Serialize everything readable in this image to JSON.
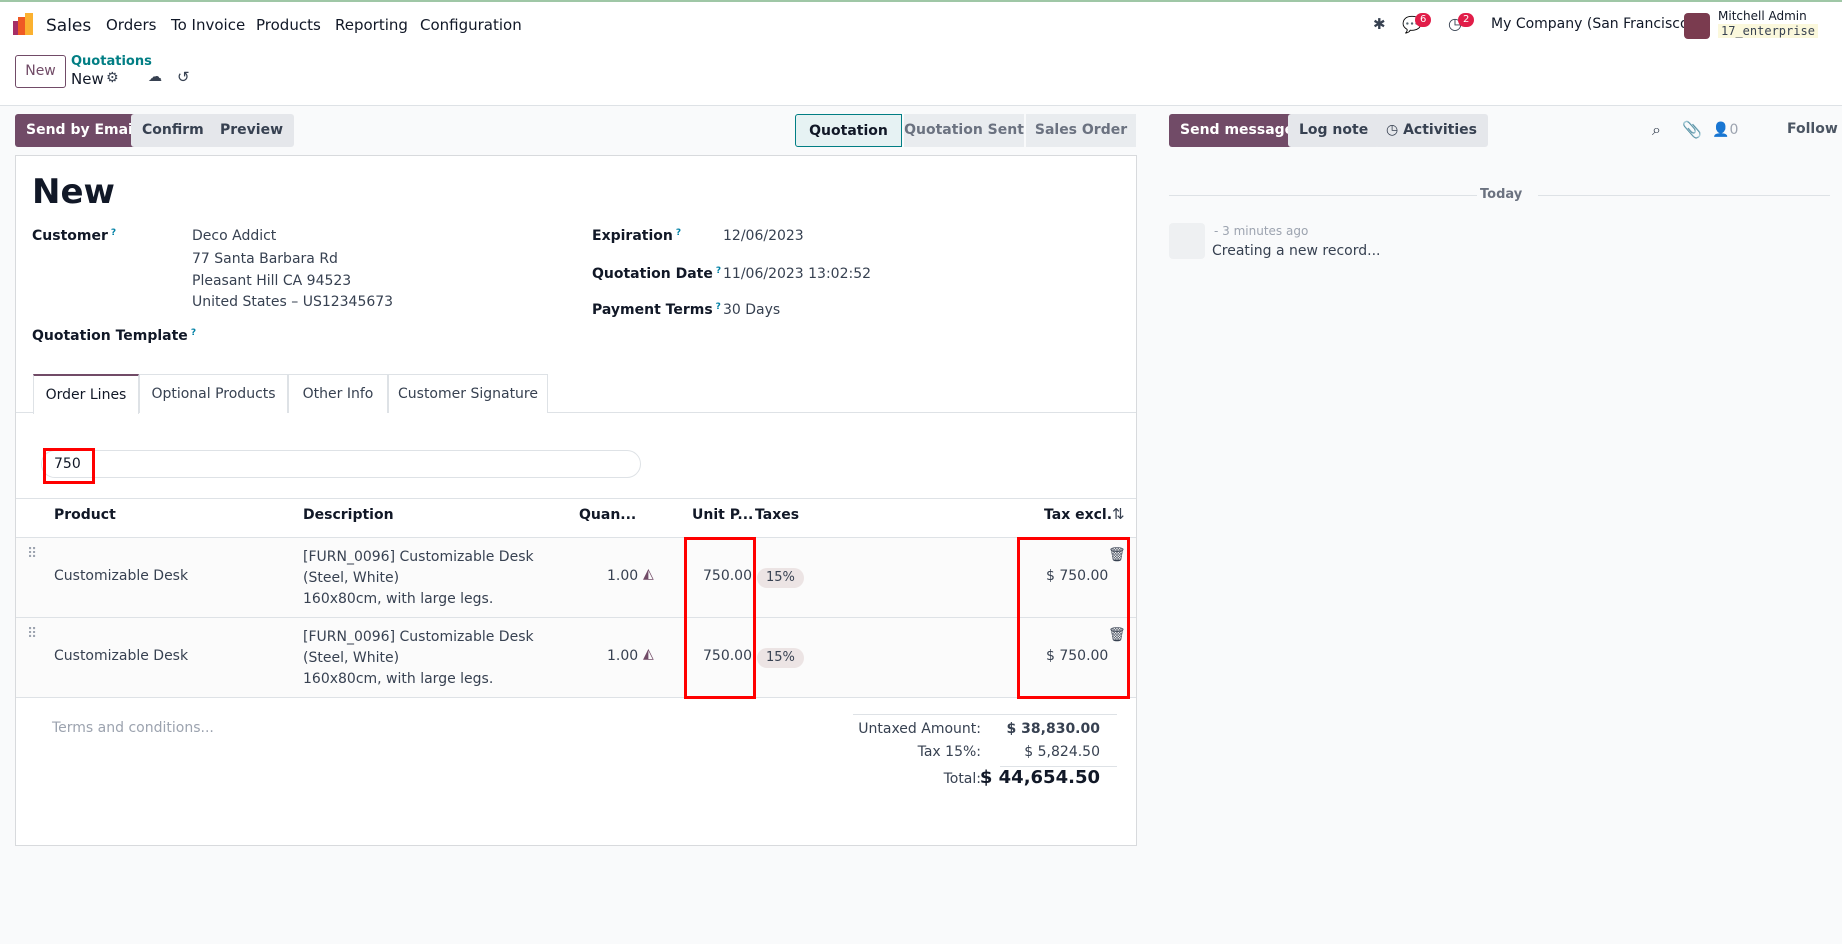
{
  "app": {
    "name": "Sales",
    "menu": [
      "Orders",
      "To Invoice",
      "Products",
      "Reporting",
      "Configuration"
    ]
  },
  "systray": {
    "messages_count": "6",
    "activities_count": "2",
    "company": "My Company (San Francisco)",
    "user": "Mitchell Admin",
    "database": "17_enterprise"
  },
  "control": {
    "new_label": "New",
    "breadcrumb_parent": "Quotations",
    "breadcrumb_current": "New"
  },
  "actions": {
    "send_email": "Send by Email",
    "confirm": "Confirm",
    "preview": "Preview"
  },
  "status": [
    "Quotation",
    "Quotation Sent",
    "Sales Order"
  ],
  "status_active": "Quotation",
  "form": {
    "title": "New",
    "customer_label": "Customer",
    "customer_name": "Deco Addict",
    "address": [
      "77 Santa Barbara Rd",
      "Pleasant Hill CA 94523",
      "United States – US12345673"
    ],
    "template_label": "Quotation Template",
    "expiration_label": "Expiration",
    "expiration": "12/06/2023",
    "date_label": "Quotation Date",
    "date": "11/06/2023 13:02:52",
    "terms_label": "Payment Terms",
    "terms": "30 Days"
  },
  "tabs": [
    "Order Lines",
    "Optional Products",
    "Other Info",
    "Customer Signature"
  ],
  "search": {
    "value": "750"
  },
  "table": {
    "headers": [
      "Product",
      "Description",
      "Quan...",
      "Unit P...",
      "Taxes",
      "Tax excl."
    ],
    "rows": [
      {
        "product": "Customizable Desk",
        "desc": [
          "[FURN_0096] Customizable Desk",
          "(Steel, White)",
          "160x80cm, with large legs."
        ],
        "qty": "1.00",
        "price": "750.00",
        "tax": "15%",
        "subtotal": "$ 750.00"
      },
      {
        "product": "Customizable Desk",
        "desc": [
          "[FURN_0096] Customizable Desk",
          "(Steel, White)",
          "160x80cm, with large legs."
        ],
        "qty": "1.00",
        "price": "750.00",
        "tax": "15%",
        "subtotal": "$ 750.00"
      }
    ]
  },
  "terms_placeholder": "Terms and conditions...",
  "totals": {
    "untaxed_label": "Untaxed Amount:",
    "untaxed": "$ 38,830.00",
    "tax_label": "Tax 15%:",
    "tax": "$ 5,824.50",
    "total_label": "Total:",
    "total": "$ 44,654.50"
  },
  "chatter": {
    "send_message": "Send message",
    "log_note": "Log note",
    "activities": "Activities",
    "followers_count": "0",
    "follow": "Follow",
    "date_sep": "Today",
    "time": "- 3 minutes ago",
    "message": "Creating a new record..."
  },
  "colors": {
    "brand": "#714b67",
    "link": "#017e84",
    "highlight": "#ff0000"
  }
}
